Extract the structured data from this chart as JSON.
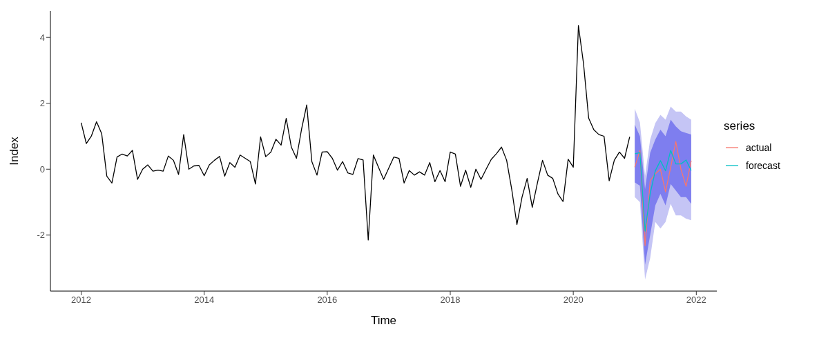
{
  "chart_data": {
    "type": "line",
    "xlabel": "Time",
    "ylabel": "Index",
    "legend_title": "series",
    "legend": "right",
    "grid": false,
    "xlim": [
      "2011-07",
      "2022-05"
    ],
    "xticks": [
      "2012",
      "2014",
      "2016",
      "2018",
      "2020",
      "2022"
    ],
    "ylim": [
      -3.7,
      4.8
    ],
    "yticks": [
      -2,
      0,
      2,
      4
    ],
    "x": [
      "2012-01",
      "2012-02",
      "2012-03",
      "2012-04",
      "2012-05",
      "2012-06",
      "2012-07",
      "2012-08",
      "2012-09",
      "2012-10",
      "2012-11",
      "2012-12",
      "2013-01",
      "2013-02",
      "2013-03",
      "2013-04",
      "2013-05",
      "2013-06",
      "2013-07",
      "2013-08",
      "2013-09",
      "2013-10",
      "2013-11",
      "2013-12",
      "2014-01",
      "2014-02",
      "2014-03",
      "2014-04",
      "2014-05",
      "2014-06",
      "2014-07",
      "2014-08",
      "2014-09",
      "2014-10",
      "2014-11",
      "2014-12",
      "2015-01",
      "2015-02",
      "2015-03",
      "2015-04",
      "2015-05",
      "2015-06",
      "2015-07",
      "2015-08",
      "2015-09",
      "2015-10",
      "2015-11",
      "2015-12",
      "2016-01",
      "2016-02",
      "2016-03",
      "2016-04",
      "2016-05",
      "2016-06",
      "2016-07",
      "2016-08",
      "2016-09",
      "2016-10",
      "2016-11",
      "2016-12",
      "2017-01",
      "2017-02",
      "2017-03",
      "2017-04",
      "2017-05",
      "2017-06",
      "2017-07",
      "2017-08",
      "2017-09",
      "2017-10",
      "2017-11",
      "2017-12",
      "2018-01",
      "2018-02",
      "2018-03",
      "2018-04",
      "2018-05",
      "2018-06",
      "2018-07",
      "2018-08",
      "2018-09",
      "2018-10",
      "2018-11",
      "2018-12",
      "2019-01",
      "2019-02",
      "2019-03",
      "2019-04",
      "2019-05",
      "2019-06",
      "2019-07",
      "2019-08",
      "2019-09",
      "2019-10",
      "2019-11",
      "2019-12",
      "2020-01",
      "2020-02",
      "2020-03",
      "2020-04",
      "2020-05",
      "2020-06",
      "2020-07",
      "2020-08",
      "2020-09",
      "2020-10",
      "2020-11",
      "2020-12"
    ],
    "series": [
      {
        "type": "line",
        "color": "#c5c5f5",
        "x": [
          "2021-01",
          "2021-02",
          "2021-03",
          "2021-04",
          "2021-05",
          "2021-06",
          "2021-07",
          "2021-08",
          "2021-09",
          "2021-10",
          "2021-11",
          "2021-12"
        ],
        "values": [
          null,
          null,
          null,
          null,
          null,
          null,
          null,
          null,
          null,
          null,
          null,
          null
        ],
        "lower": [
          -0.85,
          -1.0,
          -3.35,
          -2.7,
          -1.6,
          -1.8,
          -1.6,
          -1.05,
          -1.4,
          -1.4,
          -1.5,
          -1.55
        ],
        "upper": [
          1.83,
          1.42,
          -0.2,
          0.9,
          1.4,
          1.65,
          1.5,
          1.9,
          1.75,
          1.75,
          1.6,
          1.5
        ]
      },
      {
        "type": "line",
        "color": "#7e7eef",
        "x": [
          "2021-01",
          "2021-02",
          "2021-03",
          "2021-04",
          "2021-05",
          "2021-06",
          "2021-07",
          "2021-08",
          "2021-09",
          "2021-10",
          "2021-11",
          "2021-12"
        ],
        "values": [
          null,
          null,
          null,
          null,
          null,
          null,
          null,
          null,
          null,
          null,
          null,
          null
        ],
        "lower": [
          -0.4,
          -0.5,
          -2.9,
          -2.0,
          -1.1,
          -0.75,
          -1.1,
          -0.45,
          -0.65,
          -0.85,
          -0.85,
          -1.05
        ],
        "upper": [
          1.35,
          1.0,
          -0.6,
          0.5,
          0.9,
          1.2,
          1.0,
          1.5,
          1.3,
          1.15,
          1.1,
          1.05
        ]
      },
      {
        "color": "#000000",
        "values": [
          1.41,
          0.78,
          1.01,
          1.44,
          1.08,
          -0.21,
          -0.42,
          0.37,
          0.46,
          0.4,
          0.57,
          -0.31,
          0.0,
          0.13,
          -0.06,
          -0.03,
          -0.06,
          0.4,
          0.27,
          -0.16,
          1.05,
          0.0,
          0.1,
          0.11,
          -0.2,
          0.13,
          0.27,
          0.39,
          -0.21,
          0.2,
          0.06,
          0.43,
          0.33,
          0.23,
          -0.45,
          0.98,
          0.38,
          0.52,
          0.91,
          0.73,
          1.54,
          0.67,
          0.33,
          1.22,
          1.95,
          0.23,
          -0.18,
          0.52,
          0.53,
          0.33,
          -0.03,
          0.23,
          -0.11,
          -0.16,
          0.32,
          0.28,
          -2.15,
          0.43,
          0.06,
          -0.31,
          0.03,
          0.37,
          0.33,
          -0.42,
          -0.04,
          -0.18,
          -0.08,
          -0.18,
          0.2,
          -0.38,
          -0.04,
          -0.38,
          0.52,
          0.46,
          -0.52,
          -0.03,
          -0.55,
          0.0,
          -0.31,
          0.0,
          0.3,
          0.47,
          0.67,
          0.27,
          -0.62,
          -1.68,
          -0.85,
          -0.28,
          -1.16,
          -0.42,
          0.27,
          -0.18,
          -0.28,
          -0.75,
          -0.98,
          0.3,
          0.06,
          4.36,
          3.2,
          1.55,
          1.2,
          1.05,
          1.0,
          -0.35,
          0.27,
          0.52,
          0.33,
          0.98
        ]
      },
      {
        "name": "actual",
        "color": "#f8766d",
        "x": [
          "2021-01",
          "2021-02",
          "2021-03",
          "2021-04",
          "2021-05",
          "2021-06",
          "2021-07",
          "2021-08",
          "2021-09",
          "2021-10",
          "2021-11",
          "2021-12"
        ],
        "values": [
          0.06,
          0.57,
          -2.32,
          -0.35,
          -0.14,
          0.0,
          -0.69,
          0.06,
          0.84,
          0.0,
          -0.52,
          0.26
        ]
      },
      {
        "name": "forecast",
        "color": "#00bfc4",
        "x": [
          "2021-01",
          "2021-02",
          "2021-03",
          "2021-04",
          "2021-05",
          "2021-06",
          "2021-07",
          "2021-08",
          "2021-09",
          "2021-10",
          "2021-11",
          "2021-12"
        ],
        "values": [
          0.47,
          0.5,
          -1.88,
          -0.74,
          -0.05,
          0.26,
          -0.05,
          0.57,
          0.16,
          0.16,
          0.28,
          -0.04
        ]
      }
    ]
  }
}
